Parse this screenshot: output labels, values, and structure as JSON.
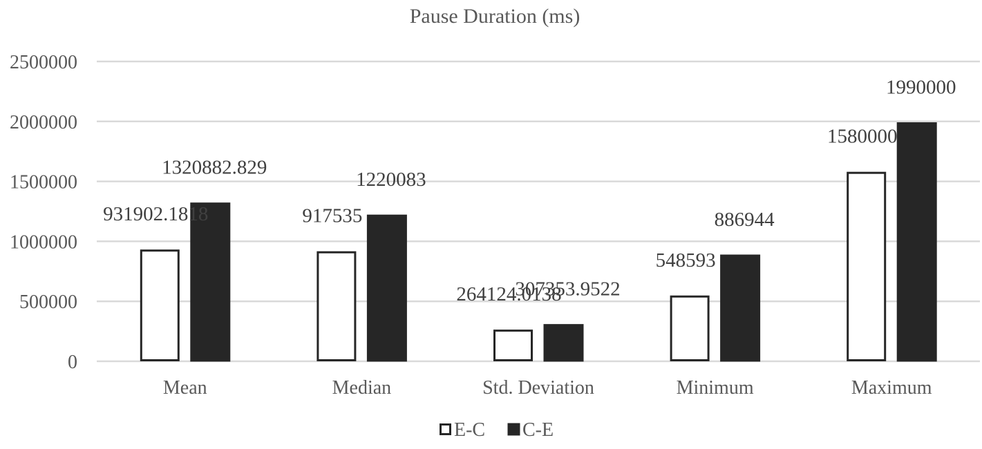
{
  "chart_data": {
    "type": "bar",
    "title": "Pause Duration (ms)",
    "xlabel": "",
    "ylabel": "",
    "categories": [
      "Mean",
      "Median",
      "Std. Deviation",
      "Minimum",
      "Maximum"
    ],
    "series": [
      {
        "name": "E-C",
        "values": [
          931902.1818,
          917535,
          264124.0138,
          548593,
          1580000
        ],
        "labels": [
          "931902.1818",
          "917535",
          "264124.0138",
          "548593",
          "1580000"
        ],
        "fill": "#ffffff",
        "stroke": "#262626"
      },
      {
        "name": "C-E",
        "values": [
          1320882.829,
          1220083,
          307353.9522,
          886944,
          1990000
        ],
        "labels": [
          "1320882.829",
          "1220083",
          "307353.9522",
          "886944",
          "1990000"
        ],
        "fill": "#262626",
        "stroke": "#262626"
      }
    ],
    "ylim": [
      0,
      2500000
    ],
    "yticks": [
      0,
      500000,
      1000000,
      1500000,
      2000000,
      2500000
    ],
    "ytick_labels": [
      "0",
      "500000",
      "1000000",
      "1500000",
      "2000000",
      "2500000"
    ],
    "grid": true,
    "legend_position": "bottom"
  }
}
